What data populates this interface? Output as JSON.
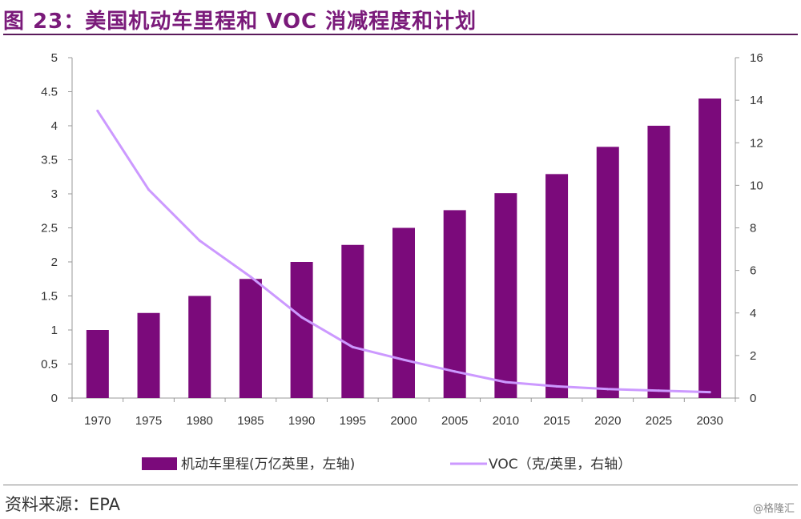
{
  "header": {
    "title": "图 23：美国机动车里程和 VOC 消减程度和计划"
  },
  "footer": {
    "source": "资料来源：EPA",
    "watermark": "@格隆汇"
  },
  "colors": {
    "bar": "#7b0a7b",
    "line": "#cc99ff",
    "title": "#7a1a7a"
  },
  "chart_data": {
    "type": "bar",
    "categories": [
      "1970",
      "1975",
      "1980",
      "1985",
      "1990",
      "1995",
      "2000",
      "2005",
      "2010",
      "2015",
      "2020",
      "2025",
      "2030"
    ],
    "series": [
      {
        "name": "机动车里程(万亿英里，左轴)",
        "type": "bar",
        "axis": "left",
        "values": [
          1.0,
          1.25,
          1.5,
          1.75,
          2.0,
          2.25,
          2.5,
          2.76,
          3.01,
          3.29,
          3.69,
          4.0,
          4.4
        ]
      },
      {
        "name": "VOC（克/英里，右轴）",
        "type": "line",
        "axis": "right",
        "values": [
          13.5,
          9.8,
          7.4,
          5.7,
          3.8,
          2.4,
          1.8,
          1.25,
          0.75,
          0.55,
          0.42,
          0.35,
          0.28
        ]
      }
    ],
    "y_left": {
      "ylim": [
        0,
        5
      ],
      "ticks": [
        "0",
        "0.5",
        "1",
        "1.5",
        "2",
        "2.5",
        "3",
        "3.5",
        "4",
        "4.5",
        "5"
      ]
    },
    "y_right": {
      "ylim": [
        0,
        16
      ],
      "ticks": [
        "0",
        "2",
        "4",
        "6",
        "8",
        "10",
        "12",
        "14",
        "16"
      ]
    },
    "grid": false,
    "legend_position": "bottom"
  }
}
